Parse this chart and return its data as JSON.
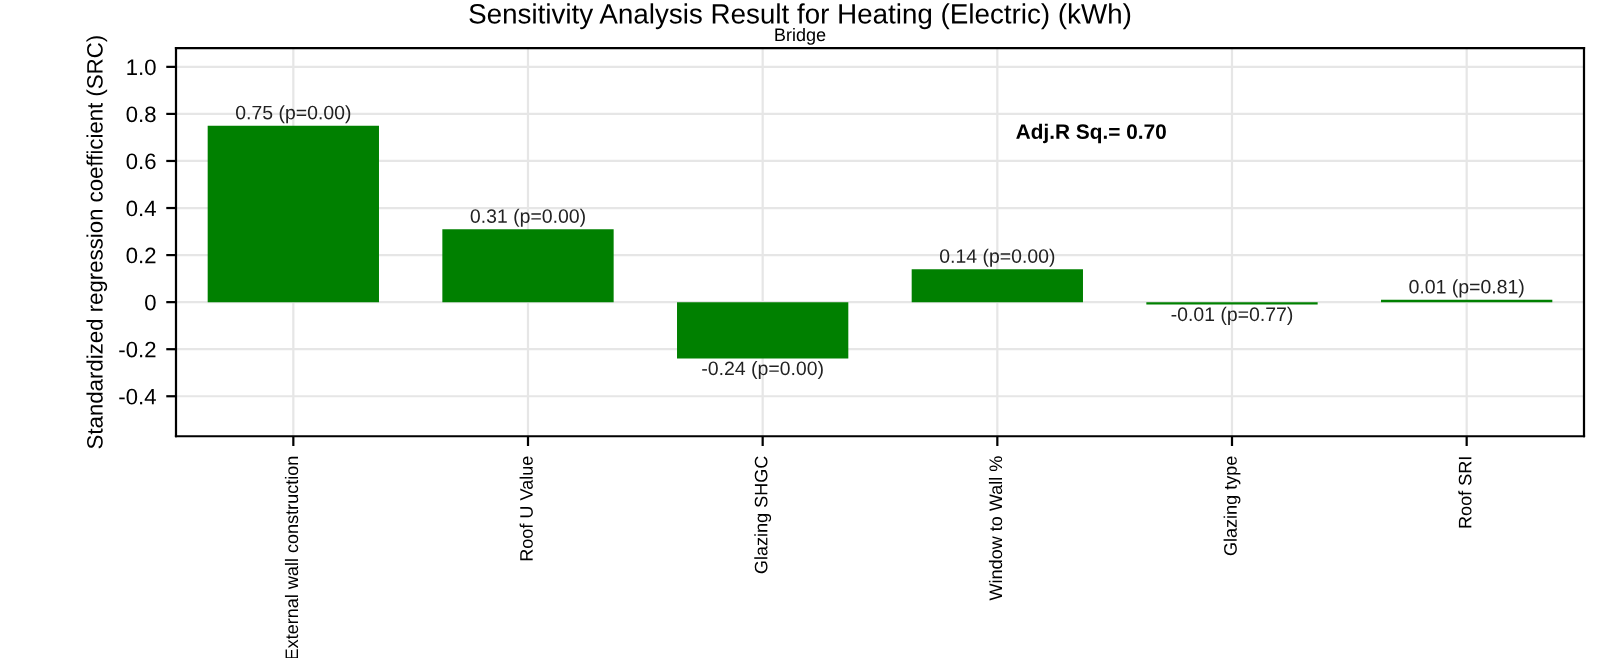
{
  "chart_data": {
    "type": "bar",
    "title": "Sensitivity Analysis Result for Heating (Electric) (kWh)",
    "subtitle": "Bridge",
    "ylabel": "Standardized regression coefficient (SRC)",
    "categories": [
      "External wall construction",
      "Roof U Value",
      "Glazing SHGC",
      "Window to Wall %",
      "Glazing type",
      "Roof SRI"
    ],
    "values": [
      0.75,
      0.31,
      -0.24,
      0.14,
      -0.01,
      0.01
    ],
    "color": "#008000",
    "value_labels": [
      "0.75 (p=0.00)",
      "0.31 (p=0.00)",
      "-0.24 (p=0.00)",
      "0.14 (p=0.00)",
      "-0.01 (p=0.77)",
      "0.01 (p=0.81)"
    ],
    "annotations": [
      "Adj.R Sq.= 0.70"
    ],
    "ylim": [
      -0.57,
      1.08
    ],
    "yticks": [
      -0.4,
      -0.2,
      0,
      0.2,
      0.4,
      0.6,
      0.8,
      {
        "value": 1.0,
        "label": "1.0"
      }
    ],
    "grid": true
  }
}
